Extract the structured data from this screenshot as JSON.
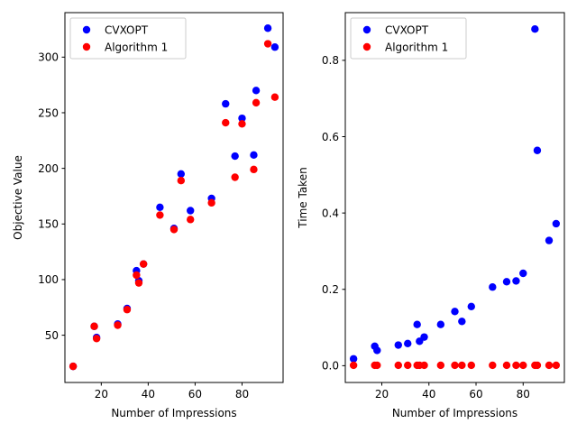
{
  "colors": {
    "series_a": "#0000ff",
    "series_b": "#ff0000",
    "axes": "#000000",
    "legend_border": "#cccccc"
  },
  "chart_data": [
    {
      "type": "scatter",
      "xlabel": "Number of Impressions",
      "ylabel": "Objective Value",
      "xlim": [
        4.5,
        97.5
      ],
      "ylim": [
        7.5,
        340
      ],
      "xticks": [
        20,
        40,
        60,
        80
      ],
      "yticks": [
        50,
        100,
        150,
        200,
        250,
        300
      ],
      "grid": false,
      "legend_position": "upper-left",
      "series": [
        {
          "name": "CVXOPT",
          "color": "#0000ff",
          "x": [
            8,
            17,
            18,
            27,
            31,
            35,
            36,
            38,
            45,
            51,
            54,
            58,
            67,
            73,
            77,
            80,
            85,
            86,
            91,
            94
          ],
          "y": [
            22,
            58,
            48,
            60,
            74,
            108,
            99,
            114,
            165,
            146,
            195,
            162,
            173,
            258,
            211,
            245,
            212,
            270,
            326,
            309
          ]
        },
        {
          "name": "Algorithm 1",
          "color": "#ff0000",
          "x": [
            8,
            17,
            18,
            27,
            31,
            35,
            36,
            38,
            45,
            51,
            54,
            58,
            67,
            73,
            77,
            80,
            85,
            86,
            91,
            94
          ],
          "y": [
            22,
            58,
            47,
            59,
            73,
            104,
            97,
            114,
            158,
            145,
            189,
            154,
            169,
            241,
            192,
            240,
            199,
            259,
            312,
            264
          ]
        }
      ]
    },
    {
      "type": "scatter",
      "xlabel": "Number of Impressions",
      "ylabel": "Time Taken",
      "xlim": [
        4.5,
        97.5
      ],
      "ylim": [
        -0.044,
        0.925
      ],
      "xticks": [
        20,
        40,
        60,
        80
      ],
      "yticks": [
        0.0,
        0.2,
        0.4,
        0.6,
        0.8
      ],
      "ytick_labels": [
        "0.0",
        "0.2",
        "0.4",
        "0.6",
        "0.8"
      ],
      "grid": false,
      "legend_position": "upper-left",
      "series": [
        {
          "name": "CVXOPT",
          "color": "#0000ff",
          "x": [
            8,
            17,
            18,
            27,
            31,
            35,
            36,
            38,
            45,
            51,
            54,
            58,
            67,
            73,
            77,
            80,
            85,
            86,
            91,
            94
          ],
          "y": [
            0.018,
            0.051,
            0.04,
            0.054,
            0.058,
            0.108,
            0.064,
            0.075,
            0.108,
            0.142,
            0.116,
            0.155,
            0.206,
            0.22,
            0.222,
            0.242,
            0.882,
            0.564,
            0.328,
            0.372
          ]
        },
        {
          "name": "Algorithm 1",
          "color": "#ff0000",
          "x": [
            8,
            17,
            18,
            27,
            31,
            35,
            36,
            38,
            45,
            51,
            54,
            58,
            67,
            73,
            77,
            80,
            85,
            86,
            91,
            94
          ],
          "y": [
            0.001,
            0.001,
            0.001,
            0.001,
            0.001,
            0.001,
            0.001,
            0.001,
            0.001,
            0.001,
            0.001,
            0.001,
            0.001,
            0.001,
            0.001,
            0.001,
            0.001,
            0.001,
            0.001,
            0.001
          ]
        }
      ]
    }
  ]
}
